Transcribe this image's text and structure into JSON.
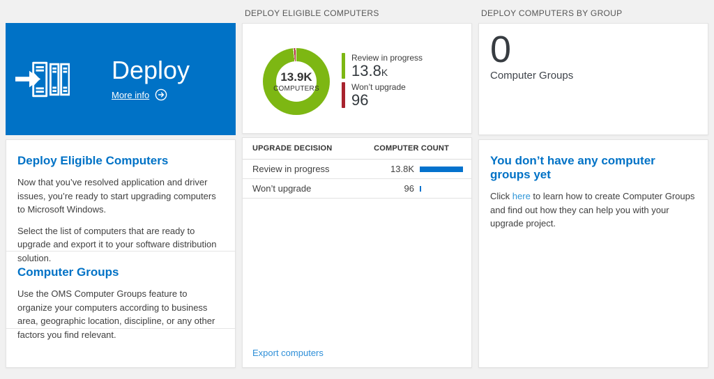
{
  "colors": {
    "tile_blue": "#0072c6",
    "heading_blue": "#0072c6",
    "link_blue": "#2e95d8",
    "donut_green": "#7db713",
    "donut_red": "#a8232e",
    "bar_blue": "#0472cd",
    "background": "#f1f1f1"
  },
  "deploy": {
    "tile_title": "Deploy",
    "more_info_label": "More info",
    "sections": [
      {
        "heading": "Deploy Eligible Computers",
        "paragraphs": [
          "Now that you’ve resolved application and driver issues, you’re ready to start upgrading computers to Microsoft Windows.",
          "Select the list of computers that are ready to upgrade and export it to your software distribution solution."
        ]
      },
      {
        "heading": "Computer Groups",
        "paragraphs": [
          "Use the OMS Computer Groups feature to organize your computers according to business area, geographic location, discipline, or any other factors you find relevant."
        ]
      }
    ]
  },
  "eligible": {
    "header": "DEPLOY ELIGIBLE COMPUTERS",
    "donut": {
      "center_value": "13.9K",
      "center_label": "COMPUTERS",
      "segments": [
        {
          "label": "Review in progress",
          "value": 13800,
          "display": "13.8",
          "suffix": "K",
          "color": "#7db713"
        },
        {
          "label": "Won’t upgrade",
          "value": 96,
          "display": "96",
          "suffix": "",
          "color": "#a8232e"
        }
      ]
    },
    "table": {
      "col_decision": "UPGRADE DECISION",
      "col_count": "COMPUTER COUNT",
      "max_count": 13800,
      "rows": [
        {
          "label": "Review in progress",
          "count": 13800,
          "count_display": "13.8K"
        },
        {
          "label": "Won’t upgrade",
          "count": 96,
          "count_display": "96"
        }
      ]
    },
    "export_label": "Export computers"
  },
  "groups": {
    "header": "DEPLOY COMPUTERS BY GROUP",
    "count": "0",
    "count_label": "Computer Groups",
    "empty_heading": "You don’t have any computer groups yet",
    "empty_text_before": "Click ",
    "empty_link_text": "here",
    "empty_text_after": " to learn how to create Computer Groups and find out how they can help you with your upgrade project."
  }
}
